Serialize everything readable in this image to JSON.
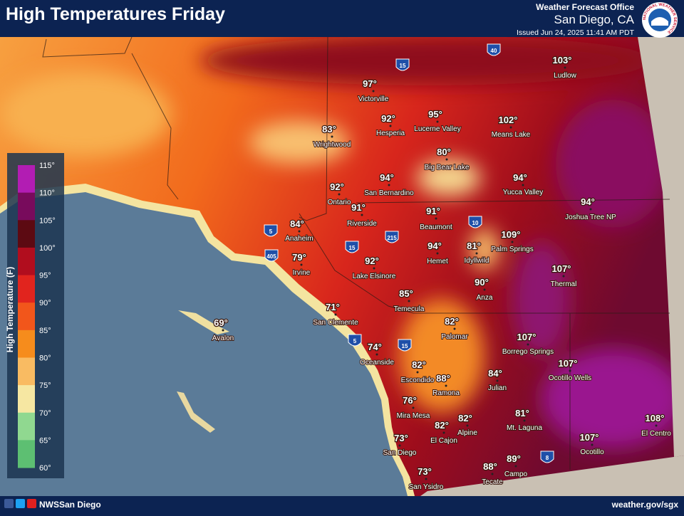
{
  "header": {
    "title": "High Temperatures Friday",
    "office": "Weather Forecast Office",
    "location": "San Diego, CA",
    "issued": "Issued Jun 24, 2025 11:41 AM PDT",
    "logo_text": "NATIONAL WEATHER SERVICE"
  },
  "legend": {
    "label": "High Temperature (F)",
    "ticks": [
      "115°",
      "110°",
      "105°",
      "100°",
      "95°",
      "90°",
      "85°",
      "80°",
      "75°",
      "70°",
      "65°",
      "60°"
    ],
    "colors": [
      "#b21db3",
      "#780b5c",
      "#5c0a12",
      "#b10d1e",
      "#e1241e",
      "#f2561b",
      "#f68c1c",
      "#f9bb62",
      "#f6e7a2",
      "#90d890",
      "#5dbf72"
    ]
  },
  "cities": [
    {
      "temp": "103°",
      "name": "Ludlow"
    },
    {
      "temp": "97°",
      "name": "Victorville"
    },
    {
      "temp": "92°",
      "name": "Hesperia"
    },
    {
      "temp": "95°",
      "name": "Lucerne Valley"
    },
    {
      "temp": "102°",
      "name": "Means Lake"
    },
    {
      "temp": "83°",
      "name": "Wrightwood"
    },
    {
      "temp": "80°",
      "name": "Big Bear Lake"
    },
    {
      "temp": "94°",
      "name": "San Bernardino"
    },
    {
      "temp": "94°",
      "name": "Yucca Valley"
    },
    {
      "temp": "92°",
      "name": "Ontario"
    },
    {
      "temp": "94°",
      "name": "Joshua Tree NP"
    },
    {
      "temp": "91°",
      "name": "Riverside"
    },
    {
      "temp": "91°",
      "name": "Beaumont"
    },
    {
      "temp": "84°",
      "name": "Anaheim"
    },
    {
      "temp": "109°",
      "name": "Palm Springs"
    },
    {
      "temp": "94°",
      "name": "Hemet"
    },
    {
      "temp": "81°",
      "name": "Idyllwild"
    },
    {
      "temp": "79°",
      "name": "Irvine"
    },
    {
      "temp": "92°",
      "name": "Lake Elsinore"
    },
    {
      "temp": "107°",
      "name": "Thermal"
    },
    {
      "temp": "90°",
      "name": "Anza"
    },
    {
      "temp": "85°",
      "name": "Temecula"
    },
    {
      "temp": "71°",
      "name": "San Clemente"
    },
    {
      "temp": "69°",
      "name": "Avalon"
    },
    {
      "temp": "82°",
      "name": "Palomar"
    },
    {
      "temp": "107°",
      "name": "Borrego Springs"
    },
    {
      "temp": "74°",
      "name": "Oceanside"
    },
    {
      "temp": "82°",
      "name": "Escondido"
    },
    {
      "temp": "88°",
      "name": "Ramona"
    },
    {
      "temp": "84°",
      "name": "Julian"
    },
    {
      "temp": "107°",
      "name": "Ocotillo Wells"
    },
    {
      "temp": "76°",
      "name": "Mira Mesa"
    },
    {
      "temp": "81°",
      "name": "Mt. Laguna"
    },
    {
      "temp": "82°",
      "name": "Alpine"
    },
    {
      "temp": "82°",
      "name": "El Cajon"
    },
    {
      "temp": "108°",
      "name": "El Centro"
    },
    {
      "temp": "73°",
      "name": "San Diego"
    },
    {
      "temp": "107°",
      "name": "Ocotillo"
    },
    {
      "temp": "89°",
      "name": "Campo"
    },
    {
      "temp": "88°",
      "name": "Tecate"
    },
    {
      "temp": "73°",
      "name": "San Ysidro"
    }
  ],
  "highways": [
    "15",
    "40",
    "5",
    "405",
    "15",
    "215",
    "10",
    "5",
    "15",
    "8"
  ],
  "footer": {
    "handle": "NWSSan Diego",
    "url": "weather.gov/sgx"
  }
}
